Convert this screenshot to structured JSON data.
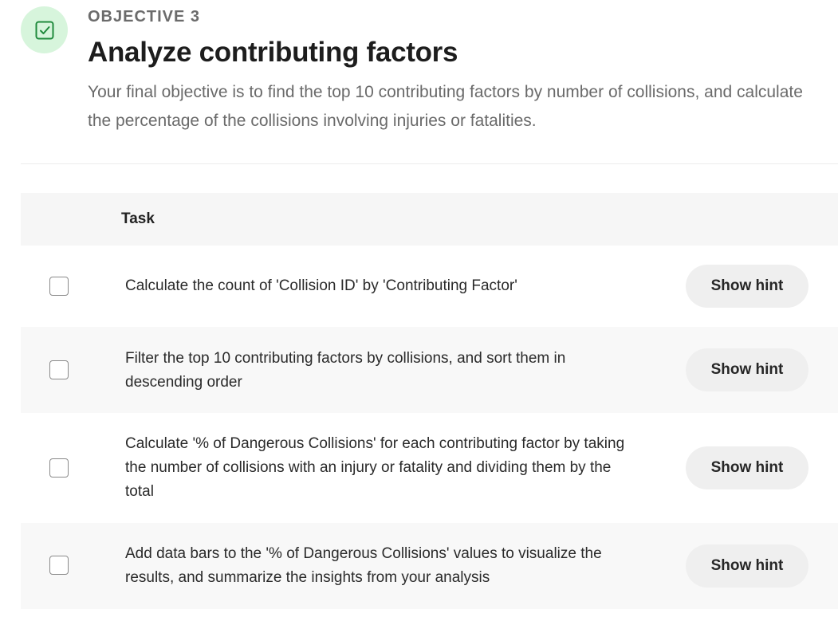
{
  "objective": {
    "badge_icon": "check-square-icon",
    "label": "OBJECTIVE 3",
    "title": "Analyze contributing factors",
    "description": "Your final objective is to find the top 10 contributing factors by number of collisions, and calculate the percentage of the collisions involving injuries or fatalities."
  },
  "colors": {
    "badge_bg": "#d7f5dc",
    "badge_icon": "#1f8a3c",
    "hint_button_bg": "#efefef"
  },
  "table": {
    "header": "Task",
    "tasks": [
      {
        "text": "Calculate the count of 'Collision ID' by 'Contributing Factor'",
        "checked": false,
        "hint_label": "Show hint"
      },
      {
        "text": "Filter the top 10 contributing factors by collisions, and sort them in descending order",
        "checked": false,
        "hint_label": "Show hint"
      },
      {
        "text": "Calculate '% of Dangerous Collisions' for each contributing factor by taking the number of collisions with an injury or fatality and dividing them by the total",
        "checked": false,
        "hint_label": "Show hint"
      },
      {
        "text": "Add data bars to the '% of Dangerous Collisions' values to visualize the results, and summarize the insights from your analysis",
        "checked": false,
        "hint_label": "Show hint"
      }
    ]
  }
}
